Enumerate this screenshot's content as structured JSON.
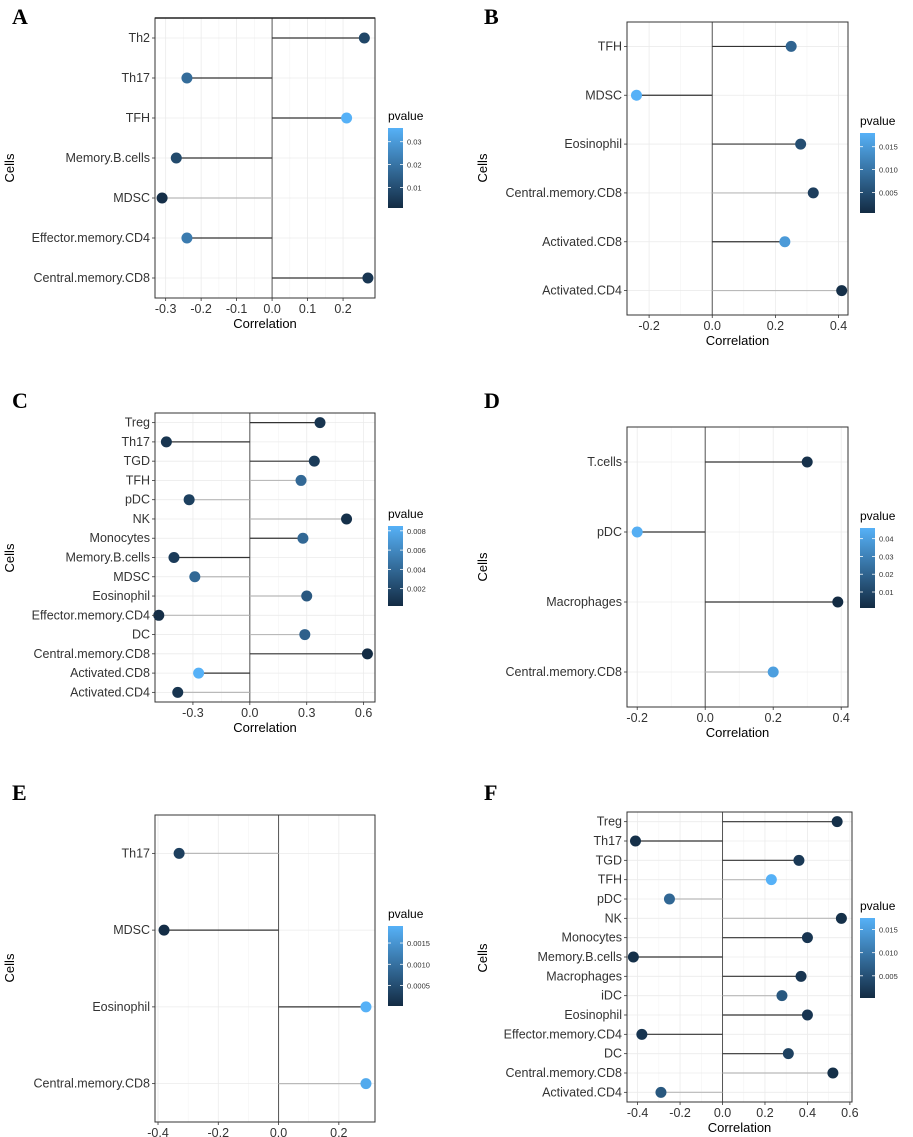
{
  "figure": {
    "panel_letters": [
      "A",
      "B",
      "C",
      "D",
      "E",
      "F"
    ]
  },
  "chart_data": [
    {
      "panel": "A",
      "type": "lollipop",
      "xlabel": "Correlation",
      "ylabel": "Cells",
      "legend_title": "pvalue",
      "legend_ticks": [
        "0.03",
        "0.02",
        "0.01"
      ],
      "legend_range": [
        0.001,
        0.036
      ],
      "xlim": [
        -0.33,
        0.29
      ],
      "xticks": [
        -0.3,
        -0.2,
        -0.1,
        0.0,
        0.1,
        0.2
      ],
      "xtick_labels": [
        "-0.3",
        "-0.2",
        "-0.1",
        "0.0",
        "0.1",
        "0.2"
      ],
      "categories": [
        "Th2",
        "Th17",
        "TFH",
        "Memory.B.cells",
        "MDSC",
        "Effector.memory.CD4",
        "Central.memory.CD8"
      ],
      "values": [
        0.26,
        -0.24,
        0.21,
        -0.27,
        -0.31,
        -0.24,
        0.27
      ],
      "pvalues": [
        0.008,
        0.018,
        0.036,
        0.009,
        0.002,
        0.022,
        0.004
      ]
    },
    {
      "panel": "B",
      "type": "lollipop",
      "xlabel": "Correlation",
      "ylabel": "Cells",
      "legend_title": "pvalue",
      "legend_ticks": [
        "0.015",
        "0.010",
        "0.005"
      ],
      "legend_range": [
        0.0005,
        0.018
      ],
      "xlim": [
        -0.27,
        0.43
      ],
      "xticks": [
        -0.2,
        0.0,
        0.2,
        0.4
      ],
      "xtick_labels": [
        "-0.2",
        "0.0",
        "0.2",
        "0.4"
      ],
      "categories": [
        "TFH",
        "MDSC",
        "Eosinophil",
        "Central.memory.CD8",
        "Activated.CD8",
        "Activated.CD4"
      ],
      "values": [
        0.25,
        -0.24,
        0.28,
        0.32,
        0.23,
        0.41
      ],
      "pvalues": [
        0.008,
        0.018,
        0.005,
        0.003,
        0.015,
        0.001
      ]
    },
    {
      "panel": "C",
      "type": "lollipop",
      "xlabel": "Correlation",
      "ylabel": "Cells",
      "legend_title": "pvalue",
      "legend_ticks": [
        "0.008",
        "0.006",
        "0.004",
        "0.002"
      ],
      "legend_range": [
        0.0002,
        0.0085
      ],
      "xlim": [
        -0.5,
        0.66
      ],
      "xticks": [
        -0.3,
        0.0,
        0.3,
        0.6
      ],
      "xtick_labels": [
        "-0.3",
        "0.0",
        "0.3",
        "0.6"
      ],
      "categories": [
        "Treg",
        "Th17",
        "TGD",
        "TFH",
        "pDC",
        "NK",
        "Monocytes",
        "Memory.B.cells",
        "MDSC",
        "Eosinophil",
        "Effector.memory.CD4",
        "DC",
        "Central.memory.CD8",
        "Activated.CD8",
        "Activated.CD4"
      ],
      "values": [
        0.37,
        -0.44,
        0.34,
        0.27,
        -0.32,
        0.51,
        0.28,
        -0.4,
        -0.29,
        0.3,
        -0.48,
        0.29,
        0.62,
        -0.27,
        -0.38
      ],
      "pvalues": [
        0.0008,
        0.0008,
        0.0012,
        0.004,
        0.0015,
        0.0005,
        0.004,
        0.0012,
        0.004,
        0.003,
        0.0004,
        0.0035,
        0.0002,
        0.0085,
        0.0008
      ]
    },
    {
      "panel": "D",
      "type": "lollipop",
      "xlabel": "Correlation",
      "ylabel": "Cells",
      "legend_title": "pvalue",
      "legend_ticks": [
        "0.04",
        "0.03",
        "0.02",
        "0.01"
      ],
      "legend_range": [
        0.001,
        0.046
      ],
      "xlim": [
        -0.23,
        0.42
      ],
      "xticks": [
        -0.2,
        0.0,
        0.2,
        0.4
      ],
      "xtick_labels": [
        "-0.2",
        "0.0",
        "0.2",
        "0.4"
      ],
      "categories": [
        "T.cells",
        "pDC",
        "Macrophages",
        "Central.memory.CD8"
      ],
      "values": [
        0.3,
        -0.2,
        0.39,
        0.2
      ],
      "pvalues": [
        0.003,
        0.045,
        0.001,
        0.04
      ]
    },
    {
      "panel": "E",
      "type": "lollipop",
      "xlabel": "Correlation",
      "ylabel": "Cells",
      "legend_title": "pvalue",
      "legend_ticks": [
        "0.0015",
        "0.0010",
        "0.0005"
      ],
      "legend_range": [
        2e-05,
        0.0019
      ],
      "xlim": [
        -0.41,
        0.32
      ],
      "xticks": [
        -0.4,
        -0.2,
        0.0,
        0.2
      ],
      "xtick_labels": [
        "-0.4",
        "-0.2",
        "0.0",
        "0.2"
      ],
      "categories": [
        "Th17",
        "MDSC",
        "Eosinophil",
        "Central.memory.CD8"
      ],
      "values": [
        -0.33,
        -0.38,
        0.29,
        0.29
      ],
      "pvalues": [
        0.0003,
        5e-05,
        0.0019,
        0.0018
      ]
    },
    {
      "panel": "F",
      "type": "lollipop",
      "xlabel": "Correlation",
      "ylabel": "Cells",
      "legend_title": "pvalue",
      "legend_ticks": [
        "0.015",
        "0.010",
        "0.005"
      ],
      "legend_range": [
        0.0002,
        0.0175
      ],
      "xlim": [
        -0.45,
        0.61
      ],
      "xticks": [
        -0.4,
        -0.2,
        0.0,
        0.2,
        0.4,
        0.6
      ],
      "xtick_labels": [
        "-0.4",
        "-0.2",
        "0.0",
        "0.2",
        "0.4",
        "0.6"
      ],
      "categories": [
        "Treg",
        "Th17",
        "TGD",
        "TFH",
        "pDC",
        "NK",
        "Monocytes",
        "Memory.B.cells",
        "Macrophages",
        "iDC",
        "Eosinophil",
        "Effector.memory.CD4",
        "DC",
        "Central.memory.CD8",
        "Activated.CD4"
      ],
      "values": [
        0.54,
        -0.41,
        0.36,
        0.23,
        -0.25,
        0.56,
        0.4,
        -0.42,
        0.37,
        0.28,
        0.4,
        -0.38,
        0.31,
        0.52,
        -0.29
      ],
      "pvalues": [
        0.0008,
        0.0008,
        0.002,
        0.0175,
        0.008,
        0.0008,
        0.0015,
        0.0008,
        0.0015,
        0.006,
        0.0015,
        0.0015,
        0.003,
        0.0008,
        0.006
      ]
    }
  ]
}
